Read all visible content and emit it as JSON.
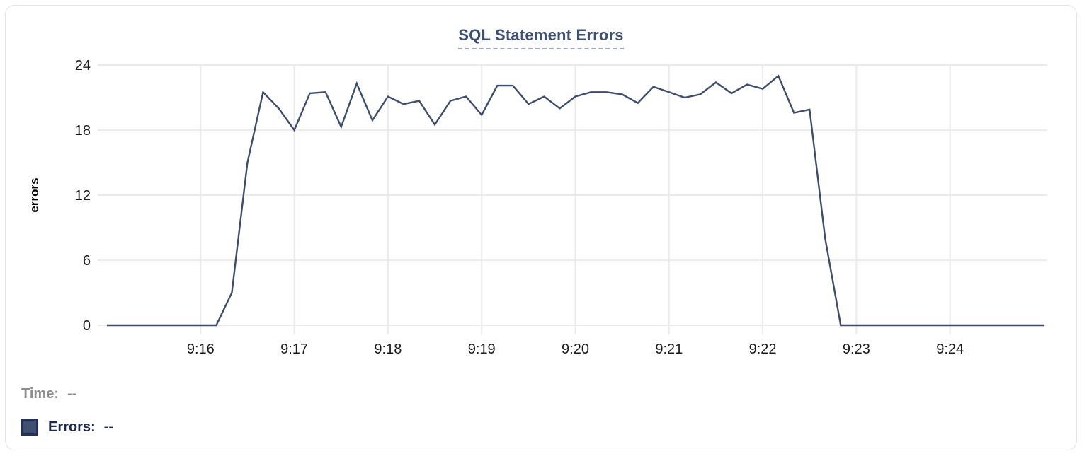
{
  "chart_data": {
    "type": "line",
    "title": "SQL Statement Errors",
    "xlabel": "",
    "ylabel": "errors",
    "ylim": [
      0,
      24
    ],
    "y_ticks": [
      0,
      6,
      12,
      18,
      24
    ],
    "x_ticks": [
      "9:16",
      "9:17",
      "9:18",
      "9:19",
      "9:20",
      "9:21",
      "9:22",
      "9:23",
      "9:24"
    ],
    "x_range": [
      "9:15:00",
      "9:25:00"
    ],
    "interval_seconds": 10,
    "grid": true,
    "legend_position": "bottom-left",
    "series": [
      {
        "name": "Errors",
        "color": "#3e4d6e",
        "times": [
          "9:15:00",
          "9:15:10",
          "9:15:20",
          "9:15:30",
          "9:15:40",
          "9:15:50",
          "9:16:00",
          "9:16:10",
          "9:16:20",
          "9:16:30",
          "9:16:40",
          "9:16:50",
          "9:17:00",
          "9:17:10",
          "9:17:20",
          "9:17:30",
          "9:17:40",
          "9:17:50",
          "9:18:00",
          "9:18:10",
          "9:18:20",
          "9:18:30",
          "9:18:40",
          "9:18:50",
          "9:19:00",
          "9:19:10",
          "9:19:20",
          "9:19:30",
          "9:19:40",
          "9:19:50",
          "9:20:00",
          "9:20:10",
          "9:20:20",
          "9:20:30",
          "9:20:40",
          "9:20:50",
          "9:21:00",
          "9:21:10",
          "9:21:20",
          "9:21:30",
          "9:21:40",
          "9:21:50",
          "9:22:00",
          "9:22:10",
          "9:22:20",
          "9:22:30",
          "9:22:40",
          "9:22:50",
          "9:23:00",
          "9:23:10",
          "9:23:20",
          "9:23:30",
          "9:23:40",
          "9:23:50",
          "9:24:00",
          "9:24:10",
          "9:24:20",
          "9:24:30",
          "9:24:40",
          "9:24:50",
          "9:25:00"
        ],
        "values": [
          0,
          0,
          0,
          0,
          0,
          0,
          0,
          0,
          3,
          15,
          21.5,
          20,
          18,
          21.4,
          21.5,
          18.3,
          22.3,
          18.9,
          21.1,
          20.4,
          20.7,
          18.5,
          20.7,
          21.1,
          19.4,
          22.1,
          22.1,
          20.4,
          21.1,
          20,
          21.1,
          21.5,
          21.5,
          21.3,
          20.5,
          22,
          21.5,
          21,
          21.3,
          22.4,
          21.4,
          22.2,
          21.8,
          23,
          19.6,
          19.9,
          8,
          0,
          0,
          0,
          0,
          0,
          0,
          0,
          0,
          0,
          0,
          0,
          0,
          0,
          0
        ]
      }
    ]
  },
  "readout": {
    "time_label": "Time:",
    "time_value": "--",
    "errors_label": "Errors:",
    "errors_value": "--"
  },
  "colors": {
    "series_line": "#3e4d6e",
    "title_blue": "#3d4f73",
    "grid": "#ebebeb",
    "tick_text": "#1c1c1c",
    "axis_label": "#000000",
    "muted_gray": "#8d8d90",
    "legend_navy": "#1d2750"
  }
}
